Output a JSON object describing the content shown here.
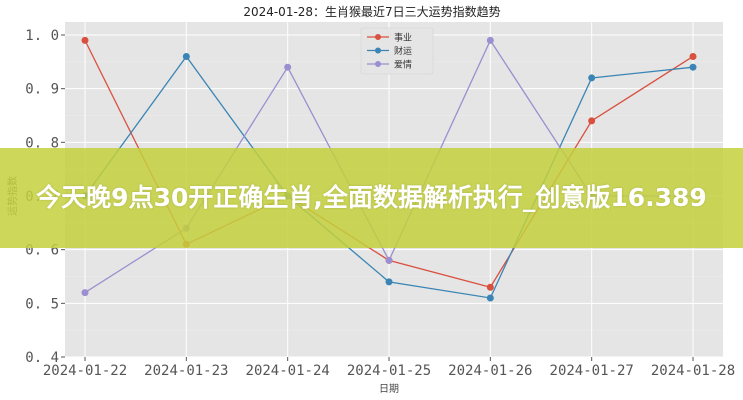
{
  "chart_data": {
    "type": "line",
    "title": "2024-01-28：生肖猴最近7日三大运势指数趋势",
    "xlabel": "日期",
    "ylabel": "运势指数",
    "categories": [
      "2024-01-22",
      "2024-01-23",
      "2024-01-24",
      "2024-01-25",
      "2024-01-26",
      "2024-01-27",
      "2024-01-28"
    ],
    "ylim": [
      0.4,
      1.0
    ],
    "yticks": [
      "1.0",
      "0.9",
      "0.8",
      "0.7",
      "0.6",
      "0.5",
      "0.4"
    ],
    "grid": true,
    "legend_position": "upper center",
    "series": [
      {
        "name": "事业",
        "color": "#d9503f",
        "values": [
          0.99,
          0.61,
          0.7,
          0.58,
          0.53,
          0.84,
          0.96
        ]
      },
      {
        "name": "财运",
        "color": "#3a85b5",
        "values": [
          0.7,
          0.96,
          0.7,
          0.54,
          0.51,
          0.92,
          0.94
        ]
      },
      {
        "name": "爱情",
        "color": "#9b8fd0",
        "values": [
          0.52,
          0.64,
          0.94,
          0.58,
          0.99,
          0.7,
          0.7
        ]
      }
    ]
  },
  "banner": {
    "text": "今天晚9点30开正确生肖,全面数据解析执行_创意版16.389",
    "color": "#c4d03c"
  },
  "colors": {
    "plot_background": "#e5e5e5",
    "grid": "#ffffff"
  }
}
